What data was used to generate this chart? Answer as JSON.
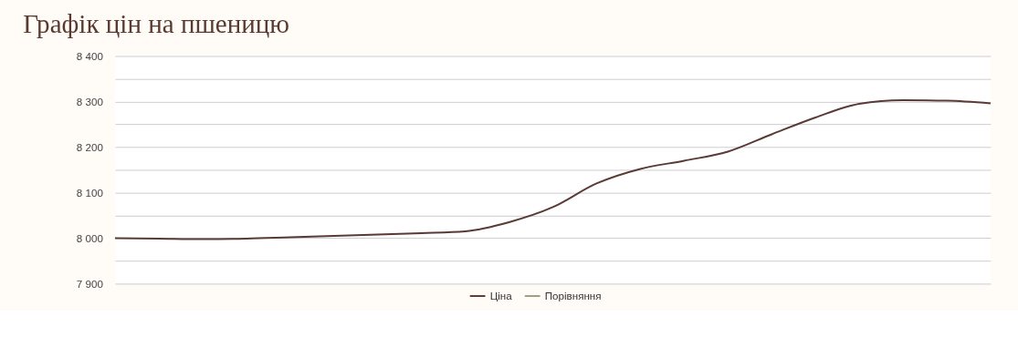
{
  "chart_data": {
    "type": "line",
    "title": "Графік цін на пшеницю",
    "categories": [
      null,
      null,
      null,
      null,
      null,
      null,
      null,
      null,
      null,
      null,
      null,
      null,
      null,
      null,
      null,
      null,
      null,
      null,
      null,
      null,
      null
    ],
    "series": [
      {
        "name": "Ціна",
        "color": "#5a3a35",
        "values": [
          8000,
          7999,
          7998,
          7999,
          8002,
          8005,
          8008,
          8011,
          8015,
          8035,
          8068,
          8120,
          8152,
          8170,
          8190,
          8228,
          8265,
          8295,
          8303,
          8302,
          8296
        ]
      },
      {
        "name": "Порівняння",
        "color": "#9c9c86",
        "values": [
          null,
          null,
          null,
          null,
          null,
          null,
          null,
          null,
          null,
          null,
          null,
          null,
          null,
          null,
          null,
          null,
          null,
          null,
          null,
          null,
          null
        ]
      }
    ],
    "ylim": [
      7900,
      8400
    ],
    "yticks": [
      7900,
      {
        "value": 7950,
        "label": null
      },
      8000,
      {
        "value": 8050,
        "label": null
      },
      8100,
      {
        "value": 8150,
        "label": null
      },
      8200,
      {
        "value": 8250,
        "label": null
      },
      8300,
      {
        "value": 8350,
        "label": null
      },
      8400
    ],
    "grid": "y",
    "legend": "bottom",
    "tick_labels": "y",
    "marker": "none",
    "line_style": "solid"
  }
}
